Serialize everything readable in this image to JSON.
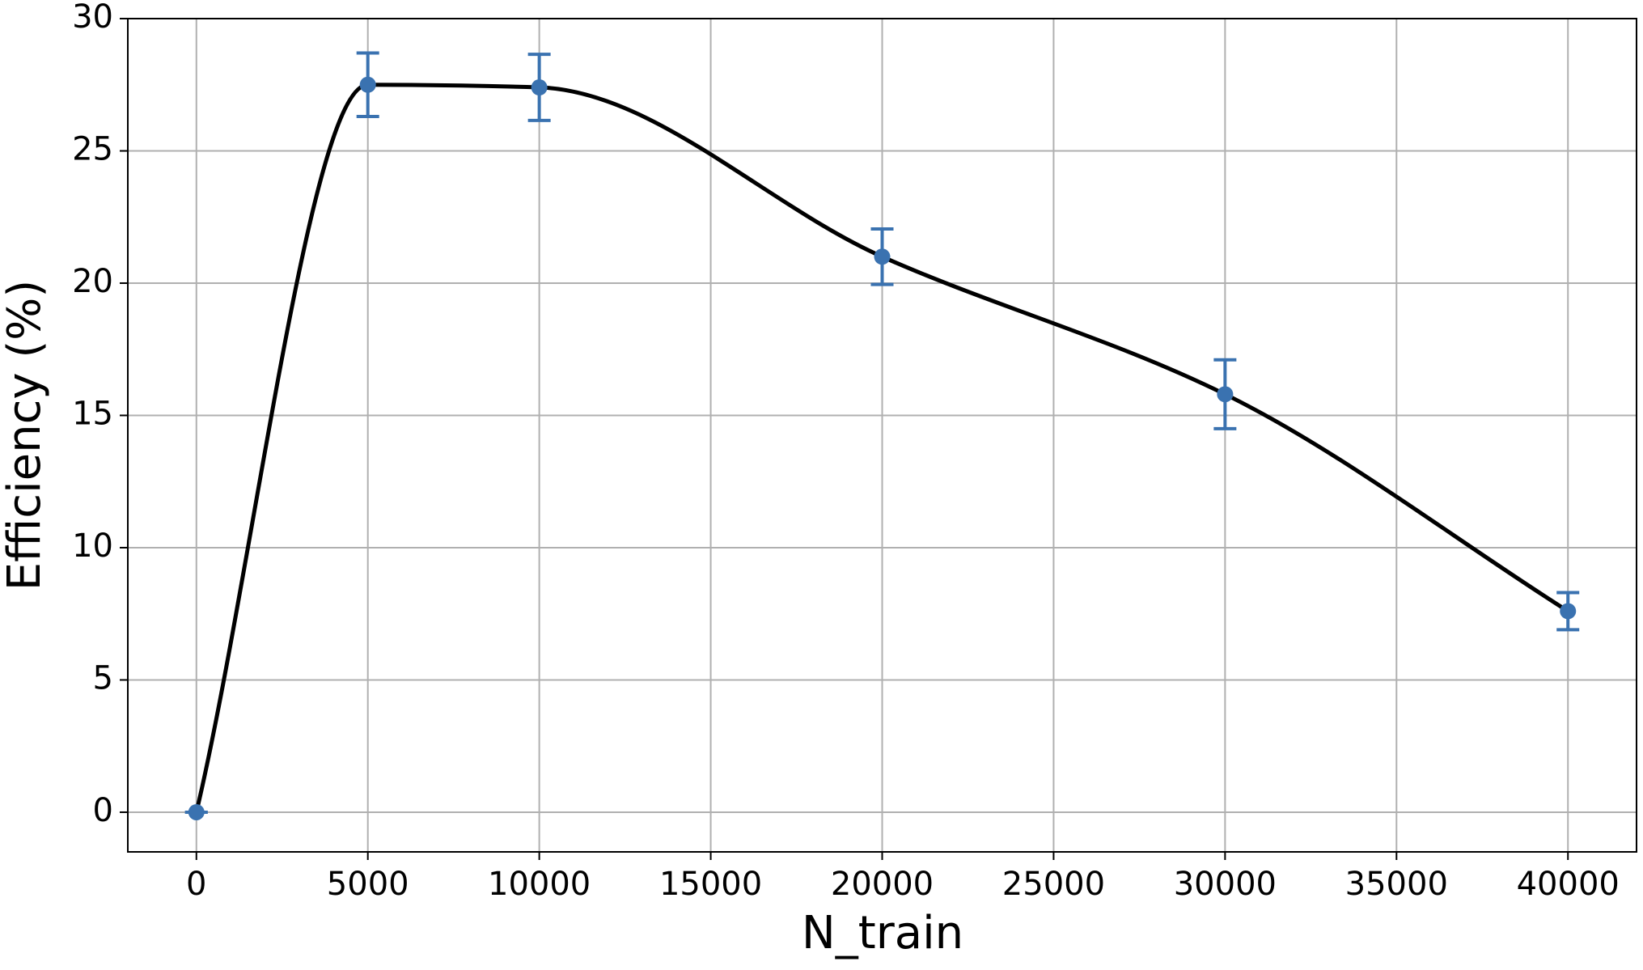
{
  "chart_data": {
    "type": "scatter",
    "xlabel": "N_train",
    "ylabel": "Efficiency (%)",
    "x": [
      0,
      5000,
      10000,
      20000,
      30000,
      40000
    ],
    "values": [
      0,
      27.5,
      27.4,
      21.0,
      15.8,
      7.6
    ],
    "errors": [
      0,
      1.2,
      1.25,
      1.05,
      1.3,
      0.7
    ],
    "color": "#3a72b0",
    "curve_color": "#000000",
    "xlim": [
      -2000,
      42000
    ],
    "xticks": [
      0,
      5000,
      10000,
      15000,
      20000,
      25000,
      30000,
      35000,
      40000
    ],
    "ylim": [
      -1.5,
      30
    ],
    "yticks": [
      0,
      5,
      10,
      15,
      20,
      25,
      30
    ],
    "grid": true
  }
}
